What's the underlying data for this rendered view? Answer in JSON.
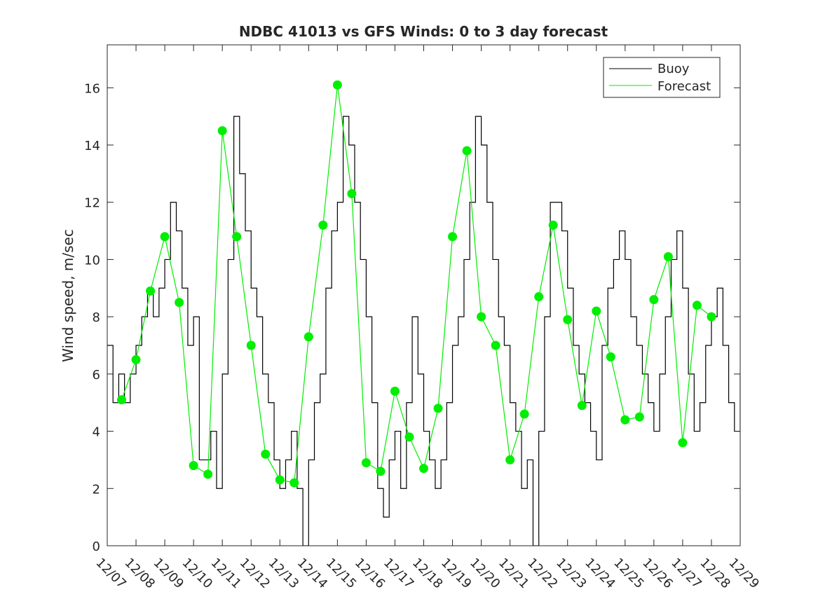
{
  "chart_data": {
    "type": "line",
    "title": "NDBC 41013 vs GFS Winds: 0 to 3 day forecast",
    "xlabel": "",
    "ylabel": "Wind speed, m/sec",
    "xlim": [
      0,
      22
    ],
    "ylim": [
      0,
      17.5
    ],
    "grid": false,
    "legend": "top-right",
    "x_tick_labels": [
      "12/07",
      "12/08",
      "12/09",
      "12/10",
      "12/11",
      "12/12",
      "12/13",
      "12/14",
      "12/15",
      "12/16",
      "12/17",
      "12/18",
      "12/19",
      "12/20",
      "12/21",
      "12/22",
      "12/23",
      "12/24",
      "12/25",
      "12/26",
      "12/27",
      "12/28",
      "12/29"
    ],
    "y_ticks": [
      0,
      2,
      4,
      6,
      8,
      10,
      12,
      14,
      16
    ],
    "colors": {
      "buoy": "#000000",
      "forecast": "#00ee00"
    },
    "series": [
      {
        "name": "Buoy",
        "x": [
          0,
          0.2,
          0.4,
          0.6,
          0.8,
          1.0,
          1.2,
          1.4,
          1.6,
          1.8,
          2.0,
          2.2,
          2.4,
          2.6,
          2.8,
          3.0,
          3.2,
          3.4,
          3.6,
          3.8,
          4.0,
          4.2,
          4.4,
          4.6,
          4.8,
          5.0,
          5.2,
          5.4,
          5.6,
          5.8,
          6.0,
          6.2,
          6.4,
          6.6,
          6.8,
          7.0,
          7.2,
          7.4,
          7.6,
          7.8,
          8.0,
          8.2,
          8.4,
          8.6,
          8.8,
          9.0,
          9.2,
          9.4,
          9.6,
          9.8,
          10.0,
          10.2,
          10.4,
          10.6,
          10.8,
          11.0,
          11.2,
          11.4,
          11.6,
          11.8,
          12.0,
          12.2,
          12.4,
          12.6,
          12.8,
          13.0,
          13.2,
          13.4,
          13.6,
          13.8,
          14.0,
          14.2,
          14.4,
          14.6,
          14.8,
          15.0,
          15.2,
          15.4,
          15.6,
          15.8,
          16.0,
          16.2,
          16.4,
          16.6,
          16.8,
          17.0,
          17.2,
          17.4,
          17.6,
          17.8,
          18.0,
          18.2,
          18.4,
          18.6,
          18.8,
          19.0,
          19.2,
          19.4,
          19.6,
          19.8,
          20.0,
          20.2,
          20.4,
          20.6,
          20.8,
          21.0,
          21.2,
          21.4,
          21.6,
          21.8,
          22.0
        ],
        "values": [
          7,
          5,
          6,
          5,
          6,
          7,
          8,
          9,
          8,
          9,
          10,
          12,
          11,
          9,
          7,
          8,
          3,
          3,
          4,
          2,
          6,
          10,
          15,
          13,
          11,
          9,
          8,
          6,
          5,
          3,
          2,
          3,
          4,
          2,
          0,
          3,
          5,
          6,
          9,
          11,
          12,
          15,
          14,
          12,
          10,
          8,
          5,
          2,
          1,
          3,
          4,
          2,
          5,
          8,
          6,
          4,
          3,
          2,
          3,
          5,
          7,
          8,
          10,
          12,
          15,
          14,
          12,
          10,
          8,
          7,
          5,
          4,
          2,
          3,
          0,
          4,
          8,
          12,
          12,
          11,
          9,
          7,
          6,
          5,
          4,
          3,
          7,
          9,
          10,
          11,
          10,
          8,
          7,
          6,
          5,
          4,
          6,
          8,
          10,
          11,
          9,
          6,
          4,
          5,
          7,
          8,
          9,
          7,
          5,
          4,
          6
        ]
      },
      {
        "name": "Forecast",
        "x": [
          0.5,
          1.0,
          1.5,
          2.0,
          2.5,
          3.0,
          3.5,
          4.0,
          4.5,
          5.0,
          5.5,
          6.0,
          6.5,
          7.0,
          7.5,
          8.0,
          8.5,
          9.0,
          9.5,
          10.0,
          10.5,
          11.0,
          11.5,
          12.0,
          12.5,
          13.0,
          13.5,
          14.0,
          14.5,
          15.0,
          15.5,
          16.0,
          16.5,
          17.0,
          17.5,
          18.0,
          18.5,
          19.0,
          19.5,
          20.0,
          20.5,
          21.0
        ],
        "values": [
          5.1,
          6.5,
          8.9,
          10.8,
          8.5,
          2.8,
          2.5,
          14.5,
          10.8,
          7.0,
          3.2,
          2.3,
          2.2,
          7.3,
          11.2,
          16.1,
          12.3,
          2.9,
          2.6,
          5.4,
          3.8,
          2.7,
          4.8,
          10.8,
          13.8,
          8.0,
          7.0,
          3.0,
          4.6,
          8.7,
          11.2,
          7.9,
          4.9,
          8.2,
          6.6,
          4.4,
          4.5,
          8.6,
          10.1,
          3.6,
          8.4,
          8.0
        ]
      }
    ]
  }
}
